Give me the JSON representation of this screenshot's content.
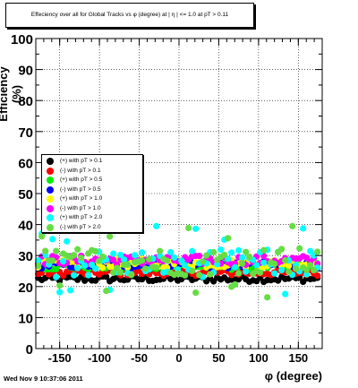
{
  "title": "Effeciency over all for Global Tracks vs φ (degree) at | η | <= 1.0 at pT > 0.11",
  "datestamp": "Wed Nov  9 10:37:06 2011",
  "chart_data": {
    "type": "scatter",
    "title": "Effeciency over all for Global Tracks vs φ (degree) at | η | <= 1.0 at pT > 0.11",
    "xlabel": "φ (degree)",
    "ylabel": "Efficiency (%)",
    "xlim": [
      -180,
      180
    ],
    "ylim": [
      0,
      100
    ],
    "xticks": [
      -150,
      -100,
      -50,
      0,
      50,
      100,
      150
    ],
    "yticks": [
      0,
      10,
      20,
      30,
      40,
      50,
      60,
      70,
      80,
      90,
      100
    ],
    "grid": true,
    "legend_placement": "middle-left",
    "series": [
      {
        "name": "(+) with pT > 0.1",
        "color": "#000000",
        "base": 22.5,
        "spread": 1.0
      },
      {
        "name": "(-) with pT > 0.1",
        "color": "#ff0000",
        "base": 24.5,
        "spread": 1.0
      },
      {
        "name": "(+) with pT > 0.5",
        "color": "#00ee00",
        "base": 26.5,
        "spread": 1.2
      },
      {
        "name": "(-) with pT > 0.5",
        "color": "#0000ff",
        "base": 27.0,
        "spread": 1.2
      },
      {
        "name": "(+) with pT > 1.0",
        "color": "#ffff00",
        "base": 27.5,
        "spread": 1.5
      },
      {
        "name": "(-) with pT > 1.0",
        "color": "#ff00ff",
        "base": 28.5,
        "spread": 1.5
      },
      {
        "name": "(+) with pT > 2.0",
        "color": "#00ffff",
        "base": 27.5,
        "spread": 4.5
      },
      {
        "name": "(-) with pT > 2.0",
        "color": "#66dd44",
        "base": 28.0,
        "spread": 4.5
      }
    ]
  }
}
